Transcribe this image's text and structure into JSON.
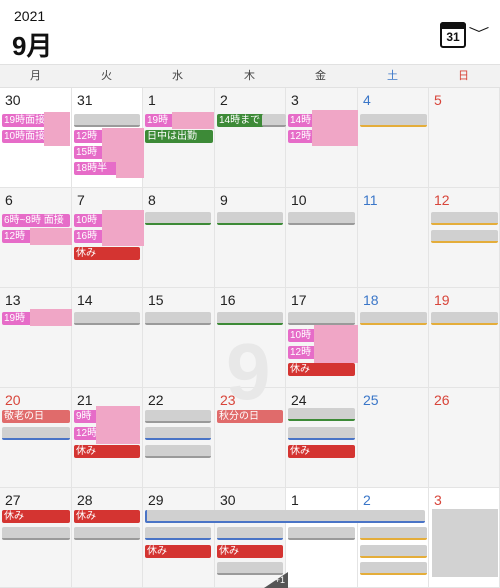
{
  "header": {
    "year": "2021",
    "month": "9月",
    "calendar_icon_day": "31",
    "chevron": "﹀"
  },
  "weekdays": [
    "月",
    "火",
    "水",
    "木",
    "金",
    "土",
    "日"
  ],
  "watermark": "9",
  "more_count": "+1",
  "colors": {
    "pink": "#e66cc8",
    "red": "#d43431",
    "green": "#3d8a37",
    "salmon": "#e06b6b",
    "saturday": "#3a76c8",
    "sunday": "#d8453a"
  },
  "weeks": [
    [
      "30",
      "31",
      "1",
      "2",
      "3",
      "4",
      "5"
    ],
    [
      "6",
      "7",
      "8",
      "9",
      "10",
      "11",
      "12"
    ],
    [
      "13",
      "14",
      "15",
      "16",
      "17",
      "18",
      "19"
    ],
    [
      "20",
      "21",
      "22",
      "23",
      "24",
      "25",
      "26"
    ],
    [
      "27",
      "28",
      "29",
      "30",
      "1",
      "2",
      "3"
    ]
  ],
  "events": {
    "mon30_a": "19時面接",
    "mon30_b": "10時面接",
    "tue31_a": "12時",
    "tue31_b": "15時",
    "tue31_c": "18時半",
    "wed1_a": "19時",
    "wed1_b": "日中は出勤",
    "thu2_a": "14時まで",
    "fri3_a": "14時",
    "fri3_b": "12時",
    "mon6_a": "6時~8時 面接",
    "mon6_b": "12時",
    "tue7_a": "10時",
    "tue7_b": "16時",
    "tue7_c": "休み",
    "mon13_a": "19時",
    "fri17_a": "10時",
    "fri17_b": "12時",
    "fri17_c": "休み",
    "mon20_a": "敬老の日",
    "tue21_a": "9時",
    "tue21_b": "12時",
    "tue21_c": "休み",
    "thu23_a": "秋分の日",
    "fri24_a": "休み",
    "mon27_a": "休み",
    "tue28_a": "休み",
    "wed29_a": "休み",
    "thu30_a": "休み"
  }
}
